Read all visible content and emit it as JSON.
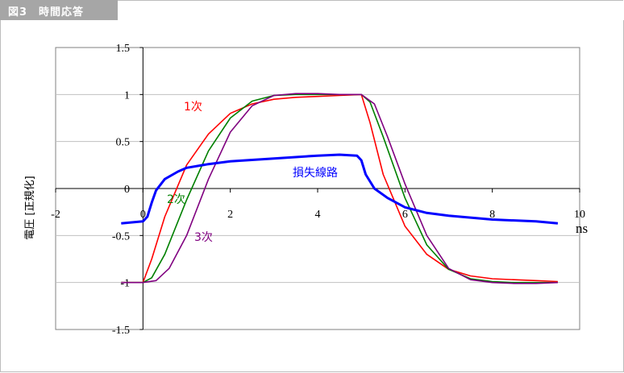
{
  "figure": {
    "label": "図3　時間応答"
  },
  "chart_data": {
    "type": "line",
    "xlabel": "ns",
    "ylabel": "電圧 [正規化]",
    "xlim": [
      -2,
      10
    ],
    "ylim": [
      -1.5,
      1.5
    ],
    "x_ticks": [
      "-2",
      "0",
      "2",
      "4",
      "6",
      "8",
      "10"
    ],
    "y_ticks": [
      "1.5",
      "1",
      "0.5",
      "0",
      "-0.5",
      "-1",
      "-1.5"
    ],
    "grid": "horizontal",
    "series": [
      {
        "name": "1次",
        "color": "#ff0000",
        "x": [
          -0.5,
          0,
          0.2,
          0.5,
          1,
          1.5,
          2,
          2.5,
          3,
          3.5,
          4,
          4.5,
          5,
          5.2,
          5.5,
          6,
          6.5,
          7,
          7.5,
          8,
          8.5,
          9,
          9.5
        ],
        "y": [
          -1,
          -1,
          -0.75,
          -0.3,
          0.25,
          0.58,
          0.8,
          0.9,
          0.95,
          0.97,
          0.98,
          0.99,
          1,
          0.7,
          0.15,
          -0.4,
          -0.7,
          -0.86,
          -0.93,
          -0.96,
          -0.97,
          -0.98,
          -0.99
        ]
      },
      {
        "name": "2次",
        "color": "#008000",
        "x": [
          -0.5,
          0,
          0.2,
          0.5,
          1,
          1.5,
          2,
          2.5,
          3,
          3.5,
          4,
          4.5,
          5,
          5.2,
          5.5,
          6,
          6.5,
          7,
          7.5,
          8,
          8.5,
          9,
          9.5
        ],
        "y": [
          -1,
          -1,
          -0.95,
          -0.7,
          -0.12,
          0.4,
          0.75,
          0.93,
          0.99,
          1,
          1,
          1,
          1,
          0.92,
          0.55,
          -0.1,
          -0.6,
          -0.86,
          -0.96,
          -0.99,
          -1,
          -1,
          -1
        ]
      },
      {
        "name": "3次",
        "color": "#800080",
        "x": [
          -0.5,
          0,
          0.3,
          0.6,
          1,
          1.5,
          2,
          2.5,
          3,
          3.5,
          4,
          4.5,
          5,
          5.3,
          5.6,
          6,
          6.5,
          7,
          7.5,
          8,
          8.5,
          9,
          9.5
        ],
        "y": [
          -1,
          -1,
          -0.98,
          -0.85,
          -0.5,
          0.1,
          0.6,
          0.88,
          0.99,
          1.01,
          1.01,
          1,
          1,
          0.9,
          0.55,
          0.05,
          -0.5,
          -0.85,
          -0.97,
          -1,
          -1.01,
          -1.01,
          -1
        ]
      },
      {
        "name": "損失線路",
        "color": "#0000ff",
        "x": [
          -0.5,
          0,
          0.1,
          0.2,
          0.3,
          0.5,
          0.8,
          1,
          1.5,
          2,
          3,
          4,
          4.5,
          4.9,
          5,
          5.1,
          5.3,
          5.6,
          6,
          6.5,
          7,
          8,
          9,
          9.5
        ],
        "y": [
          -0.37,
          -0.35,
          -0.3,
          -0.15,
          -0.02,
          0.1,
          0.18,
          0.22,
          0.26,
          0.29,
          0.32,
          0.35,
          0.36,
          0.35,
          0.3,
          0.15,
          0.0,
          -0.1,
          -0.2,
          -0.26,
          -0.29,
          -0.33,
          -0.35,
          -0.37
        ]
      }
    ]
  }
}
